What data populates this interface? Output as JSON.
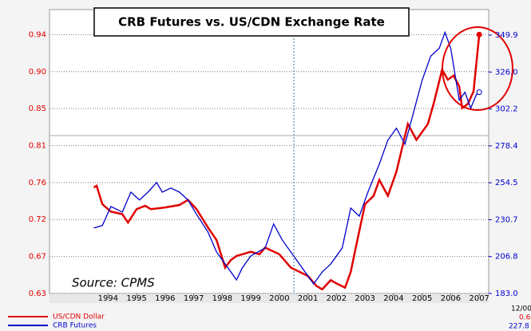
{
  "chart_data": {
    "type": "line",
    "title": "CRB Futures vs. US/CDN Exchange Rate",
    "annotations": [
      "Source:  CPMS"
    ],
    "footer": [
      "12/00",
      "0.6",
      "227.8"
    ],
    "xlim": [
      1992.45,
      2007.83
    ],
    "xticks": [
      {
        "value": 1994.5,
        "label": "1994"
      },
      {
        "value": 1995.5,
        "label": "1995"
      },
      {
        "value": 1996.5,
        "label": "1996"
      },
      {
        "value": 1997.5,
        "label": "1997"
      },
      {
        "value": 1998.5,
        "label": "1998"
      },
      {
        "value": 1999.5,
        "label": "1999"
      },
      {
        "value": 2000.5,
        "label": "2000"
      },
      {
        "value": 2001.5,
        "label": "2001"
      },
      {
        "value": 2002.5,
        "label": "2002"
      },
      {
        "value": 2003.5,
        "label": "2003"
      },
      {
        "value": 2004.5,
        "label": "2004"
      },
      {
        "value": 2005.5,
        "label": "2005"
      },
      {
        "value": 2006.5,
        "label": "2006"
      },
      {
        "value": 2007.5,
        "label": "2007"
      }
    ],
    "ylim": [
      0.63,
      0.97
    ],
    "yticks": [
      {
        "value": 0.63,
        "label": "0.63"
      },
      {
        "value": 0.6743,
        "label": "0.67"
      },
      {
        "value": 0.7186,
        "label": "0.72"
      },
      {
        "value": 0.7629,
        "label": "0.76"
      },
      {
        "value": 0.8071,
        "label": "0.81"
      },
      {
        "value": 0.8514,
        "label": "0.85"
      },
      {
        "value": 0.8957,
        "label": "0.90"
      },
      {
        "value": 0.94,
        "label": "0.94"
      }
    ],
    "y2lim": [
      183.0,
      366.4
    ],
    "y2ticks": [
      {
        "value": 183.0,
        "label": "183.0"
      },
      {
        "value": 206.84,
        "label": "206.8"
      },
      {
        "value": 230.69,
        "label": "230.7"
      },
      {
        "value": 254.53,
        "label": "254.5"
      },
      {
        "value": 278.37,
        "label": "278.4"
      },
      {
        "value": 302.21,
        "label": "302.2"
      },
      {
        "value": 326.06,
        "label": "326.0"
      },
      {
        "value": 349.9,
        "label": "349.9"
      }
    ],
    "grid": true,
    "series": [
      {
        "name": "US/CDN Dollar",
        "color": "#e00000",
        "axis": "y",
        "x": [
          1994.0,
          1994.1,
          1994.3,
          1994.6,
          1995.0,
          1995.2,
          1995.5,
          1995.8,
          1996.0,
          1996.5,
          1997.0,
          1997.3,
          1997.6,
          1998.0,
          1998.3,
          1998.6,
          1998.8,
          1999.0,
          1999.5,
          1999.8,
          2000.0,
          2000.5,
          2000.9,
          2001.2,
          2001.5,
          2001.8,
          2002.0,
          2002.3,
          2002.5,
          2002.8,
          2003.0,
          2003.2,
          2003.5,
          2003.8,
          2004.0,
          2004.3,
          2004.6,
          2004.9,
          2005.0,
          2005.3,
          2005.7,
          2005.9,
          2006.2,
          2006.4,
          2006.6,
          2006.8,
          2006.9,
          2007.1,
          2007.3,
          2007.5
        ],
        "values": [
          0.757,
          0.759,
          0.737,
          0.728,
          0.725,
          0.715,
          0.731,
          0.735,
          0.731,
          0.733,
          0.736,
          0.742,
          0.731,
          0.709,
          0.694,
          0.661,
          0.67,
          0.675,
          0.68,
          0.677,
          0.685,
          0.677,
          0.661,
          0.656,
          0.651,
          0.639,
          0.635,
          0.646,
          0.642,
          0.637,
          0.656,
          0.689,
          0.737,
          0.747,
          0.766,
          0.747,
          0.776,
          0.819,
          0.833,
          0.814,
          0.833,
          0.857,
          0.898,
          0.886,
          0.891,
          0.878,
          0.852,
          0.857,
          0.872,
          0.94
        ]
      },
      {
        "name": "CRB Futures",
        "color": "#0000cc",
        "axis": "y2",
        "x": [
          1994.0,
          1994.3,
          1994.6,
          1995.0,
          1995.3,
          1995.6,
          1995.9,
          1996.2,
          1996.4,
          1996.7,
          1997.0,
          1997.3,
          1997.6,
          1998.0,
          1998.3,
          1998.6,
          1999.0,
          1999.2,
          1999.5,
          2000.0,
          2000.3,
          2000.6,
          2001.0,
          2001.4,
          2001.7,
          2002.0,
          2002.3,
          2002.7,
          2003.0,
          2003.3,
          2003.6,
          2004.0,
          2004.3,
          2004.6,
          2004.9,
          2005.2,
          2005.5,
          2005.8,
          2006.1,
          2006.3,
          2006.5,
          2006.8,
          2007.0,
          2007.2,
          2007.4,
          2007.5
        ],
        "values": [
          225.3,
          226.9,
          239.2,
          235.6,
          248.5,
          243.4,
          248.5,
          254.7,
          248.5,
          251.1,
          248.5,
          243.4,
          234.1,
          222.7,
          209.8,
          202.1,
          191.8,
          199.5,
          207.3,
          212.4,
          227.9,
          217.6,
          207.3,
          196.9,
          189.2,
          196.9,
          202.1,
          212.4,
          238.2,
          233.0,
          248.5,
          266.6,
          282.1,
          289.8,
          279.5,
          300.1,
          320.8,
          336.3,
          341.4,
          351.7,
          341.4,
          307.9,
          313.0,
          302.7,
          311.5,
          313.0
        ]
      }
    ]
  }
}
